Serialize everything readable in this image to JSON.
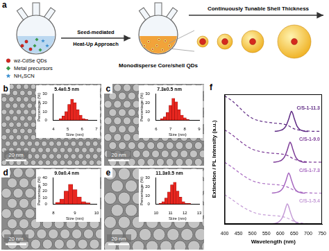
{
  "schematic": {
    "panel": "a",
    "legend": [
      {
        "label": "wz-CdSe QDs",
        "color": "#d7261e",
        "marker": "circle"
      },
      {
        "label": "Metal precursors",
        "color": "#3a9a4a",
        "marker": "diamond"
      },
      {
        "label": "NH₄SCN",
        "color": "#3a8fd0",
        "marker": "star"
      }
    ],
    "method": [
      "Seed-mediated",
      "Heat-Up Approach"
    ],
    "arrow_label": "Continuously Tunable Shell Thickness",
    "product_label": "Monodisperse Core/shell QDs"
  },
  "chart_data": [
    {
      "panel": "b",
      "type": "histogram",
      "title": "5.4±0.5 nm",
      "x_label": "Size (nm)",
      "y_label": "Percentage (%)",
      "bins": [
        4.4,
        4.6,
        4.8,
        5.0,
        5.2,
        5.4,
        5.6,
        5.8,
        6.0,
        6.2,
        6.4
      ],
      "values": [
        2,
        5,
        10,
        18,
        24,
        20,
        12,
        6,
        2,
        1
      ],
      "color": "#e8261f",
      "xlim": [
        4,
        7
      ],
      "xticks": [
        4,
        5,
        6,
        7
      ],
      "ylim": [
        0,
        30
      ],
      "yticks": [
        0,
        10,
        20,
        30
      ],
      "grid": false,
      "scale_bar": "20 nm"
    },
    {
      "panel": "c",
      "type": "histogram",
      "title": "7.3±0.5 nm",
      "x_label": "Size (nm)",
      "y_label": "Percentage (%)",
      "bins": [
        6.3,
        6.5,
        6.7,
        6.9,
        7.1,
        7.3,
        7.5,
        7.7,
        7.9,
        8.1,
        8.3
      ],
      "values": [
        2,
        4,
        9,
        17,
        25,
        21,
        12,
        6,
        3,
        1
      ],
      "color": "#e8261f",
      "xlim": [
        6,
        9
      ],
      "xticks": [
        6,
        7,
        8,
        9
      ],
      "ylim": [
        0,
        30
      ],
      "yticks": [
        0,
        10,
        20,
        30
      ],
      "grid": false,
      "scale_bar": "20 nm"
    },
    {
      "panel": "d",
      "type": "histogram",
      "title": "9.0±0.4 nm",
      "x_label": "Size (nm)",
      "y_label": "Percentage (%)",
      "bins": [
        8.1,
        8.3,
        8.5,
        8.7,
        8.9,
        9.1,
        9.3,
        9.5,
        9.7
      ],
      "values": [
        3,
        8,
        20,
        30,
        22,
        11,
        4,
        2
      ],
      "color": "#e8261f",
      "xlim": [
        8,
        10
      ],
      "xticks": [
        8,
        9,
        10
      ],
      "ylim": [
        0,
        40
      ],
      "yticks": [
        0,
        10,
        20,
        30,
        40
      ],
      "grid": false,
      "scale_bar": "20 nm"
    },
    {
      "panel": "e",
      "type": "histogram",
      "title": "11.3±0.5 nm",
      "x_label": "Size (nm)",
      "y_label": "Percentage (%)",
      "bins": [
        10.2,
        10.4,
        10.6,
        10.8,
        11.0,
        11.2,
        11.4,
        11.6,
        11.8,
        12.0,
        12.2,
        12.4
      ],
      "values": [
        1,
        3,
        7,
        14,
        22,
        25,
        15,
        8,
        3,
        1,
        1
      ],
      "color": "#e8261f",
      "xlim": [
        10,
        13
      ],
      "xticks": [
        10,
        11,
        12,
        13
      ],
      "ylim": [
        0,
        30
      ],
      "yticks": [
        0,
        10,
        20,
        30
      ],
      "grid": false,
      "scale_bar": "20 nm"
    },
    {
      "panel": "f",
      "type": "line",
      "x_label": "Wavelength (nm)",
      "y_label": "Extinction / PL Intensity (a.u.)",
      "xlim": [
        400,
        750
      ],
      "xticks": [
        400,
        450,
        500,
        550,
        600,
        650,
        700,
        750
      ],
      "ylim": [
        0,
        4.2
      ],
      "tick_labels": "x",
      "grid": false,
      "series": [
        {
          "name": "C/S-1-11.3",
          "color": "#5e2a84",
          "line_style": "dashed",
          "x": [
            400,
            425,
            450,
            475,
            500,
            525,
            550,
            575,
            600,
            625,
            650,
            675,
            700,
            725,
            750
          ],
          "values": [
            4.15,
            4.0,
            3.8,
            3.58,
            3.42,
            3.34,
            3.3,
            3.27,
            3.25,
            3.2,
            3.08,
            3.03,
            3.01,
            3.0,
            3.0
          ]
        },
        {
          "name": "C/S-1-11.3",
          "color": "#5e2a84",
          "line_style": "solid",
          "x": [
            580,
            590,
            600,
            610,
            620,
            630,
            635,
            640,
            645,
            650,
            660,
            670,
            680,
            690,
            700
          ],
          "values": [
            3.0,
            3.01,
            3.03,
            3.07,
            3.17,
            3.39,
            3.54,
            3.65,
            3.57,
            3.42,
            3.17,
            3.06,
            3.02,
            3.0,
            3.0
          ]
        },
        {
          "name": "C/S-1-9.0",
          "color": "#7d3c98",
          "line_style": "dashed",
          "x": [
            400,
            425,
            450,
            475,
            500,
            525,
            550,
            575,
            600,
            625,
            650,
            675,
            700,
            725,
            750
          ],
          "values": [
            3.05,
            2.9,
            2.72,
            2.55,
            2.42,
            2.35,
            2.31,
            2.29,
            2.27,
            2.22,
            2.1,
            2.04,
            2.01,
            2.0,
            2.0
          ]
        },
        {
          "name": "C/S-1-9.0",
          "color": "#7d3c98",
          "line_style": "solid",
          "x": [
            575,
            585,
            595,
            605,
            615,
            625,
            630,
            635,
            640,
            645,
            655,
            665,
            675,
            685,
            695
          ],
          "values": [
            2.0,
            2.01,
            2.03,
            2.07,
            2.17,
            2.39,
            2.54,
            2.65,
            2.57,
            2.42,
            2.17,
            2.06,
            2.02,
            2.0,
            2.0
          ]
        },
        {
          "name": "C/S-1-7.3",
          "color": "#a667c0",
          "line_style": "dashed",
          "x": [
            400,
            425,
            450,
            475,
            500,
            525,
            550,
            575,
            600,
            625,
            650,
            675,
            700,
            725,
            750
          ],
          "values": [
            2.0,
            1.85,
            1.68,
            1.52,
            1.4,
            1.33,
            1.3,
            1.28,
            1.26,
            1.2,
            1.09,
            1.03,
            1.01,
            1.0,
            1.0
          ]
        },
        {
          "name": "C/S-1-7.3",
          "color": "#a667c0",
          "line_style": "solid",
          "x": [
            570,
            580,
            590,
            600,
            610,
            620,
            625,
            630,
            635,
            640,
            650,
            660,
            670,
            680,
            690
          ],
          "values": [
            1.0,
            1.01,
            1.03,
            1.07,
            1.17,
            1.39,
            1.54,
            1.65,
            1.57,
            1.42,
            1.17,
            1.06,
            1.02,
            1.0,
            1.0
          ]
        },
        {
          "name": "C/S-1-5.4",
          "color": "#c49bd6",
          "line_style": "dashed",
          "x": [
            400,
            425,
            450,
            475,
            500,
            525,
            550,
            575,
            600,
            625,
            650,
            675,
            700,
            725,
            750
          ],
          "values": [
            0.95,
            0.8,
            0.64,
            0.5,
            0.39,
            0.32,
            0.29,
            0.27,
            0.25,
            0.19,
            0.08,
            0.03,
            0.01,
            0.0,
            0.0
          ]
        },
        {
          "name": "C/S-1-5.4",
          "color": "#c49bd6",
          "line_style": "solid",
          "x": [
            565,
            575,
            585,
            595,
            605,
            615,
            620,
            625,
            630,
            635,
            645,
            655,
            665,
            675,
            685
          ],
          "values": [
            0.0,
            0.01,
            0.03,
            0.07,
            0.17,
            0.39,
            0.54,
            0.65,
            0.57,
            0.42,
            0.17,
            0.06,
            0.02,
            0.0,
            0.0
          ]
        }
      ]
    }
  ]
}
